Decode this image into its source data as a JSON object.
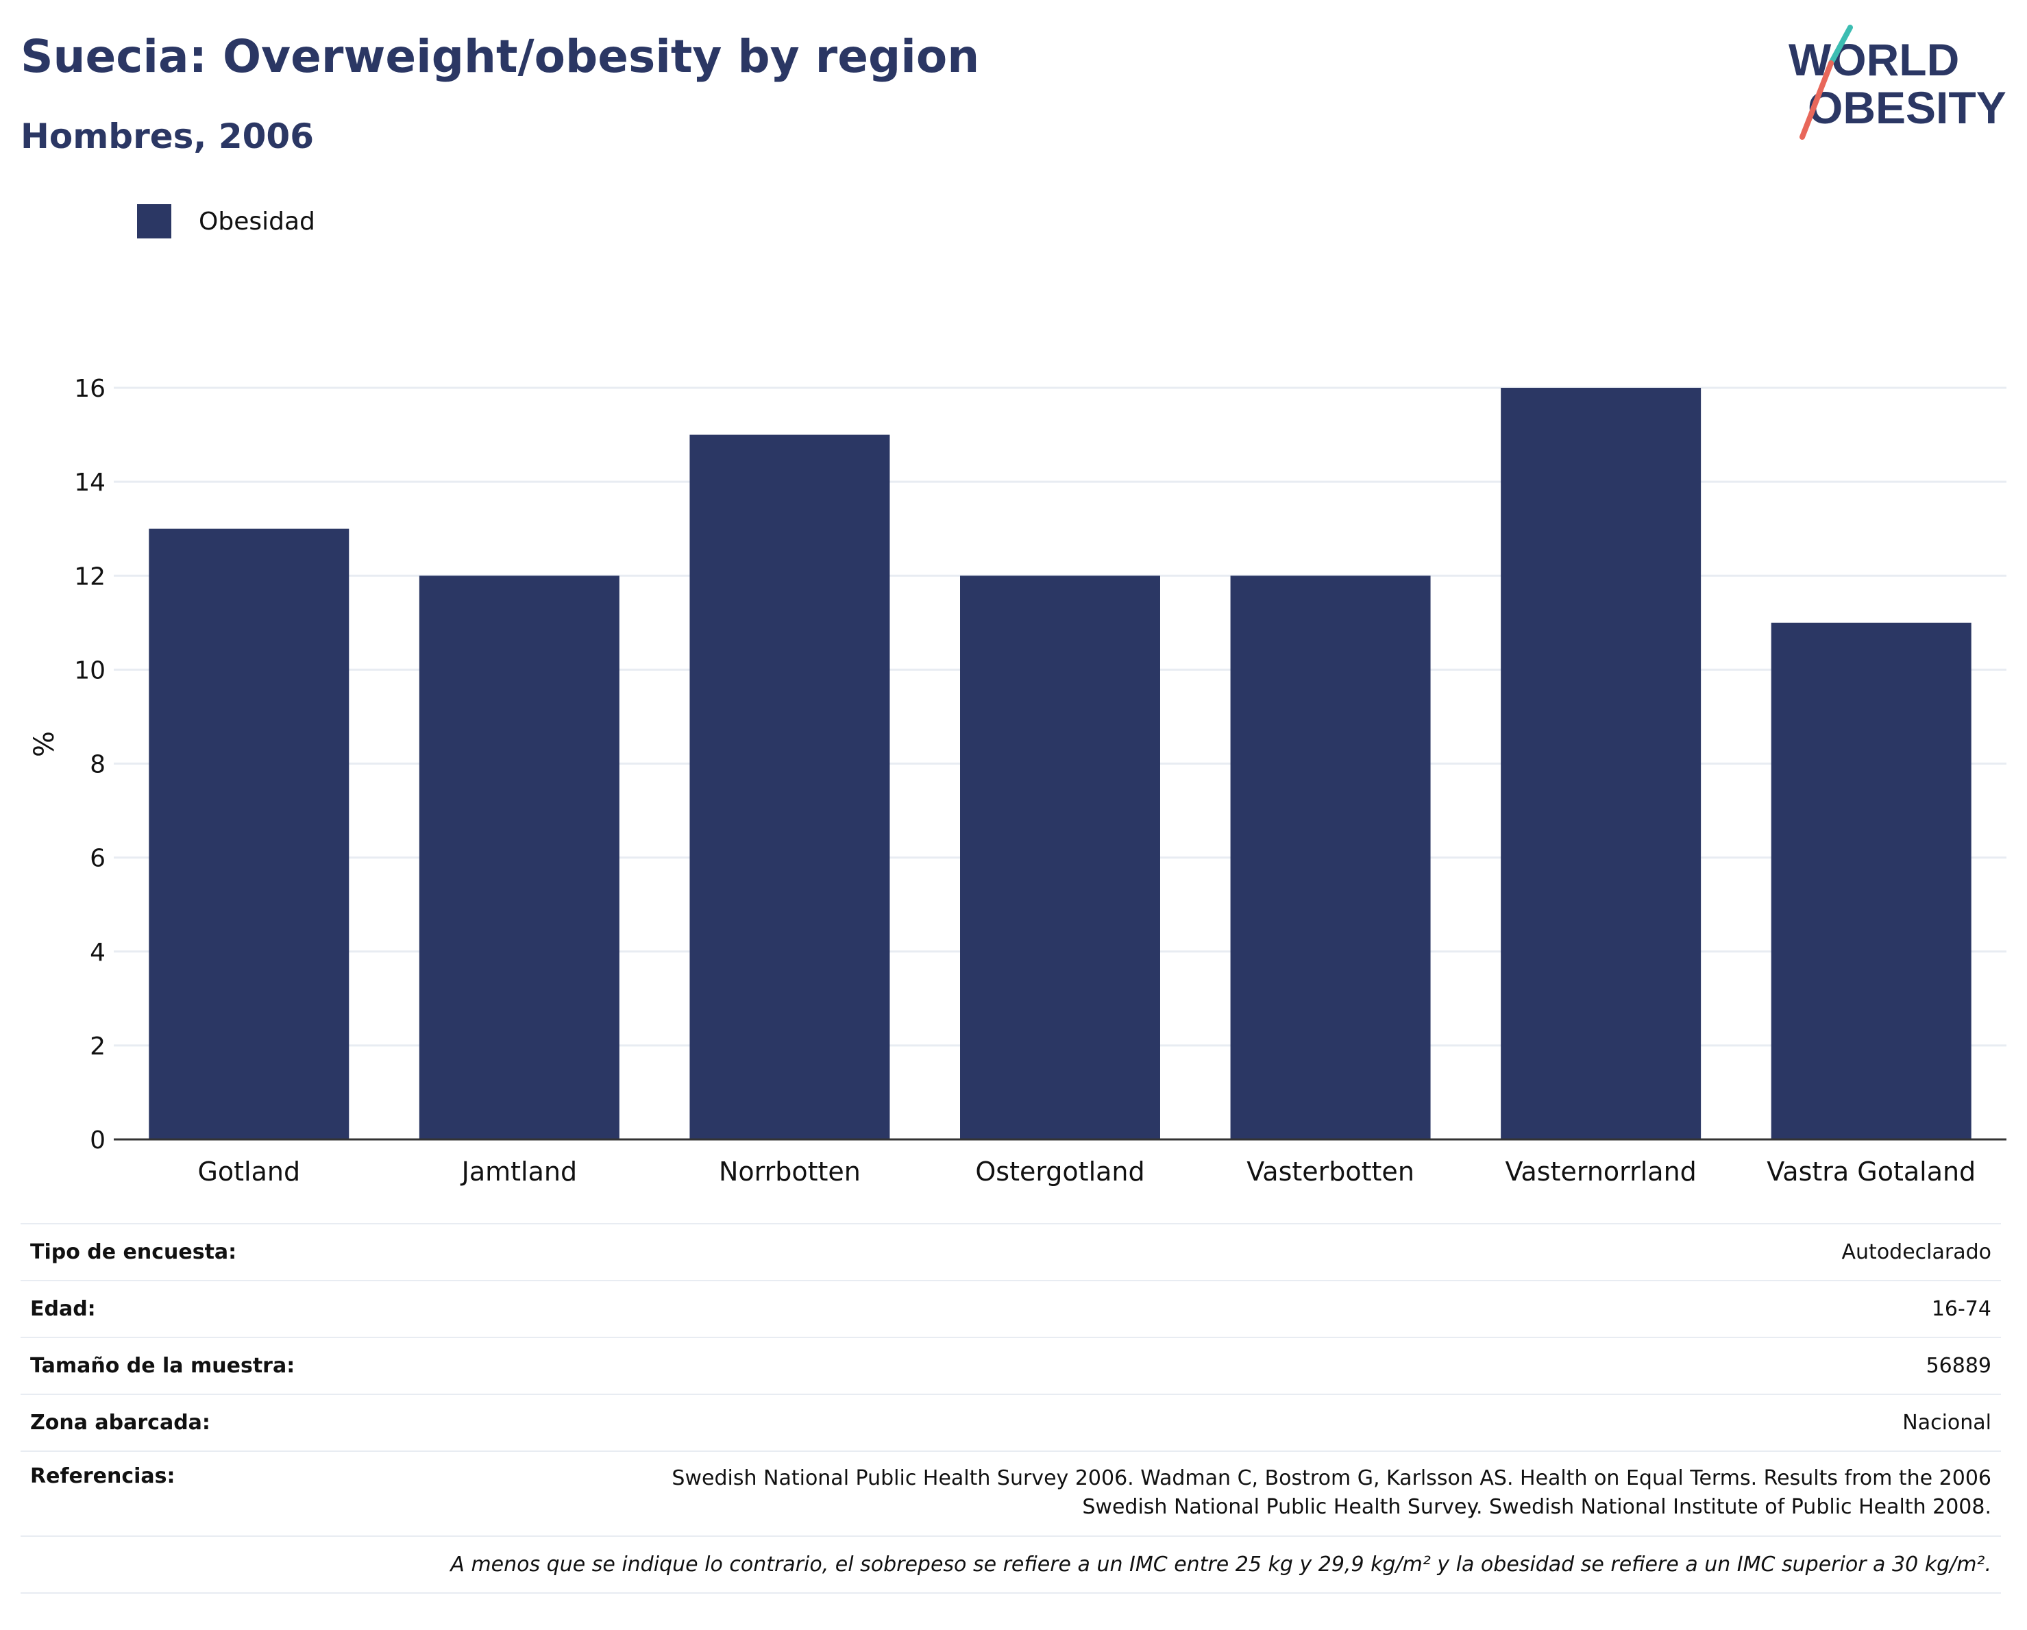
{
  "title": "Suecia: Overweight/obesity by region",
  "subtitle": "Hombres, 2006",
  "logo": {
    "line1": "WORLD",
    "line2": "OBESITY"
  },
  "colors": {
    "bar": "#2b3764",
    "title": "#2b3764",
    "grid": "#e8ecf2",
    "logo_teal": "#3cbdb2",
    "logo_coral": "#e8675a"
  },
  "chart_data": {
    "type": "bar",
    "categories": [
      "Gotland",
      "Jamtland",
      "Norrbotten",
      "Ostergotland",
      "Vasterbotten",
      "Vasternorrland",
      "Vastra Gotaland"
    ],
    "series": [
      {
        "name": "Obesidad",
        "values": [
          13,
          12,
          15,
          12,
          12,
          16,
          11
        ]
      }
    ],
    "ylabel": "%",
    "xlabel": "",
    "ylim": [
      0,
      16
    ],
    "yticks": [
      0,
      2,
      4,
      6,
      8,
      10,
      12,
      14,
      16
    ],
    "grid": true,
    "legend_placement": "top-left"
  },
  "metadata": {
    "rows": [
      {
        "key": "Tipo de encuesta:",
        "value": "Autodeclarado"
      },
      {
        "key": "Edad:",
        "value": "16-74"
      },
      {
        "key": "Tamaño de la muestra:",
        "value": "56889"
      },
      {
        "key": "Zona abarcada:",
        "value": "Nacional"
      }
    ],
    "references_key": "Referencias:",
    "references_line1": "Swedish National Public Health Survey 2006. Wadman C, Bostrom G, Karlsson AS. Health on Equal Terms. Results from the 2006",
    "references_line2": "Swedish National Public Health Survey. Swedish National Institute of Public Health 2008.",
    "footnote": "A menos que se indique lo contrario, el sobrepeso se refiere a un IMC entre 25 kg y 29,9 kg/m² y la obesidad se refiere a un IMC superior a 30 kg/m²."
  }
}
